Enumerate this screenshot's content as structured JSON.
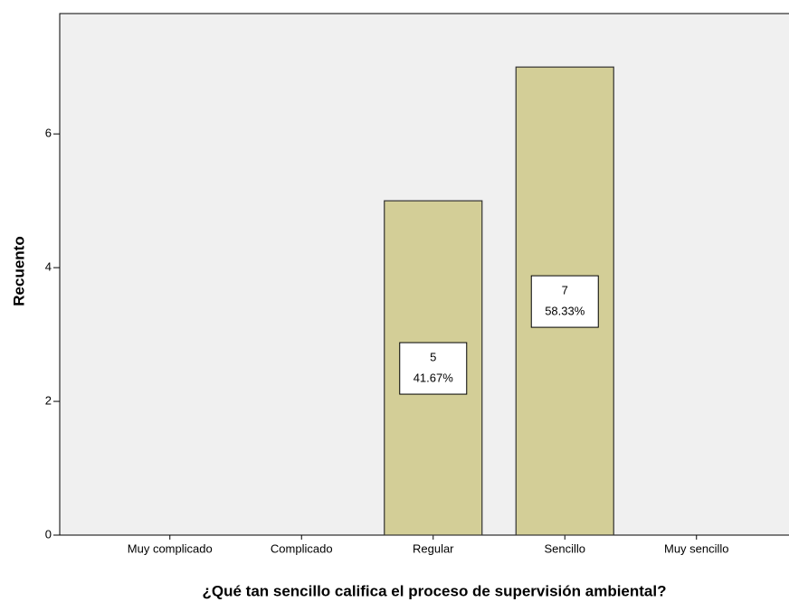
{
  "chart_data": {
    "type": "bar",
    "xlabel": "¿Qué tan sencillo califica el proceso de supervisión ambiental?",
    "ylabel": "Recuento",
    "categories": [
      "Muy complicado",
      "Complicado",
      "Regular",
      "Sencillo",
      "Muy sencillo"
    ],
    "values": [
      0,
      0,
      5,
      7,
      0
    ],
    "percentages": [
      null,
      null,
      41.67,
      58.33,
      null
    ],
    "percentage_labels": [
      null,
      null,
      "41.67%",
      "58.33%",
      null
    ],
    "color": "#d3ce97",
    "ylim": [
      0,
      7.8
    ],
    "yticks": [
      0,
      2,
      4,
      6
    ],
    "grid": false
  }
}
